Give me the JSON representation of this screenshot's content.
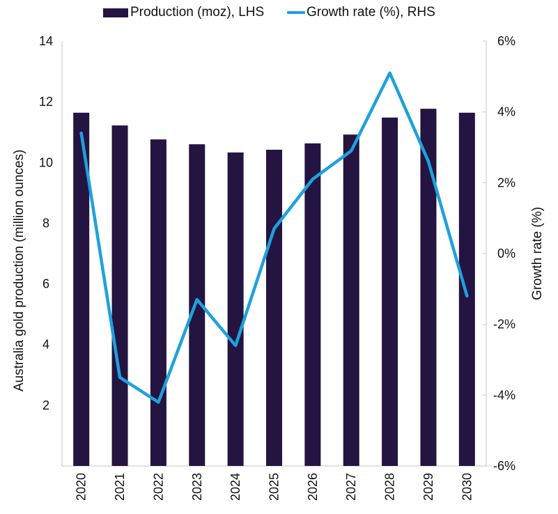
{
  "chart_data": {
    "type": "bar",
    "title": "",
    "categories": [
      "2020",
      "2021",
      "2022",
      "2023",
      "2024",
      "2025",
      "2026",
      "2027",
      "2028",
      "2029",
      "2030"
    ],
    "series": [
      {
        "name": "Production (moz), LHS",
        "type": "bar",
        "axis": "left",
        "color": "#231441",
        "values": [
          11.64,
          11.22,
          10.76,
          10.6,
          10.33,
          10.42,
          10.63,
          10.92,
          11.48,
          11.77,
          11.64
        ]
      },
      {
        "name": "Growth rate (%), RHS",
        "type": "line",
        "axis": "right",
        "color": "#1ea1dc",
        "values": [
          3.4,
          -3.5,
          -4.2,
          -1.3,
          -2.6,
          0.7,
          2.1,
          2.9,
          5.1,
          2.6,
          -1.2
        ]
      }
    ],
    "xlabel": "",
    "ylabel": "Australia gold production (million ounces)",
    "ylim": [
      0,
      14
    ],
    "yticks": [
      2,
      4,
      6,
      8,
      10,
      12,
      14
    ],
    "ytick_labels": [
      "2",
      "4",
      "6",
      "8",
      "10",
      "12",
      "14"
    ],
    "y2label": "Growth rate (%)",
    "y2lim": [
      -6,
      6
    ],
    "y2ticks": [
      -6,
      -4,
      -2,
      0,
      2,
      4,
      6
    ],
    "y2tick_labels": [
      "-6%",
      "-4%",
      "-2%",
      "0%",
      "2%",
      "4%",
      "6%"
    ],
    "grid": false,
    "legend_position": "top-center"
  }
}
